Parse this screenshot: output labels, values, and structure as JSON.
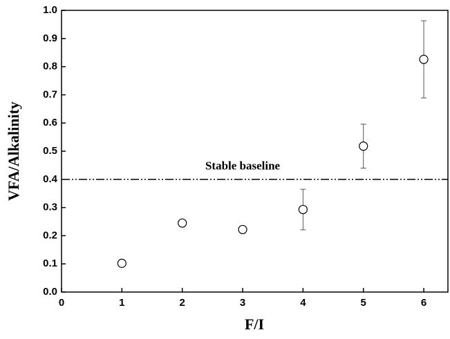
{
  "chart_data": {
    "type": "scatter",
    "xlabel": "F/I",
    "ylabel": "VFA/Alkalinity",
    "x": [
      1,
      2,
      3,
      4,
      5,
      6
    ],
    "values": [
      0.102,
      0.245,
      0.222,
      0.293,
      0.518,
      0.826
    ],
    "errors": [
      0.01,
      0.01,
      0.008,
      0.072,
      0.078,
      0.137
    ],
    "color": "#000000",
    "baseline": {
      "value": 0.4,
      "label": "Stable baseline"
    },
    "xlim": [
      0,
      6.4
    ],
    "xticks": [
      0,
      1,
      2,
      3,
      4,
      5,
      6
    ],
    "ylim": [
      0,
      1.0
    ],
    "yticks": [
      {
        "value": 0,
        "label": "0.0"
      },
      0.1,
      0.2,
      0.3,
      0.4,
      0.5,
      0.6,
      0.7,
      0.8,
      0.9,
      {
        "value": 1.0,
        "label": "1.0"
      }
    ],
    "grid": false
  }
}
